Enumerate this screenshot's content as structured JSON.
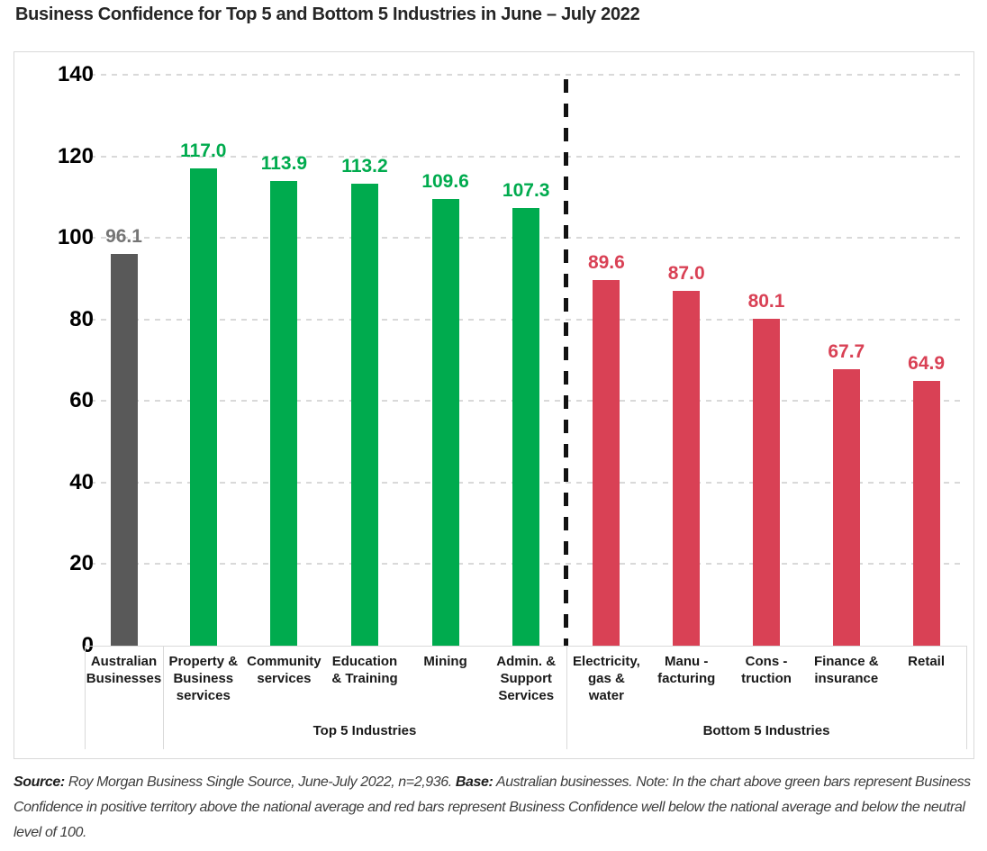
{
  "title": "Business Confidence for Top 5 and Bottom 5 Industries in June – July 2022",
  "chart_data": {
    "type": "bar",
    "title": "Business Confidence for Top 5 and Bottom 5 Industries in June – July 2022",
    "ylim": [
      0,
      140
    ],
    "yticks": [
      0,
      20,
      40,
      60,
      80,
      100,
      120,
      140
    ],
    "grid": "horizontal-dashed",
    "legend_position": "none",
    "colors": {
      "national": "#595959",
      "top": "#00ab4e",
      "bottom": "#d94155",
      "national_label": "#757575",
      "gridline": "#d9d9d9",
      "separator": "#121212"
    },
    "bars": [
      {
        "category": "Australian\nBusinesses",
        "value": 96.1,
        "group": "national"
      },
      {
        "category": "Property &\nBusiness\nservices",
        "value": 117.0,
        "group": "top"
      },
      {
        "category": "Community\nservices",
        "value": 113.9,
        "group": "top"
      },
      {
        "category": "Education\n& Training",
        "value": 113.2,
        "group": "top"
      },
      {
        "category": "Mining",
        "value": 109.6,
        "group": "top"
      },
      {
        "category": "Admin. &\nSupport\nServices",
        "value": 107.3,
        "group": "top"
      },
      {
        "category": "Electricity,\ngas &\nwater",
        "value": 89.6,
        "group": "bottom"
      },
      {
        "category": "Manu -\nfacturing",
        "value": 87.0,
        "group": "bottom"
      },
      {
        "category": "Cons -\ntruction",
        "value": 80.1,
        "group": "bottom"
      },
      {
        "category": "Finance &\ninsurance",
        "value": 67.7,
        "group": "bottom"
      },
      {
        "category": "Retail",
        "value": 64.9,
        "group": "bottom"
      }
    ],
    "group_labels": {
      "top": "Top 5 Industries",
      "bottom": "Bottom 5 Industries"
    },
    "separator_note": "dashed vertical line between Admin. & Support Services and Electricity, gas & water"
  },
  "footnote": {
    "source_label": "Source:",
    "source_text": " Roy Morgan Business Single Source, June-July 2022, n=2,936. ",
    "base_label": "Base:",
    "base_text": " Australian businesses. Note: In the chart above green bars represent Business Confidence in positive territory above the national average and red bars represent Business Confidence well below the national average and below the neutral level of 100."
  }
}
